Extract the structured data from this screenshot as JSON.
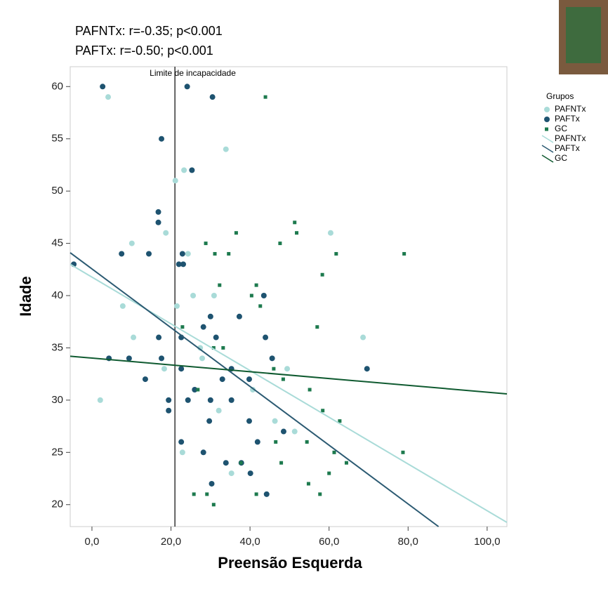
{
  "chart_data": {
    "type": "scatter",
    "annotations": [
      "PAFNTx: r=-0.35; p<0.001",
      "PAFTx: r=-0.50; p<0.001"
    ],
    "x_label": "Preensão Esquerda",
    "y_label": "Idade",
    "xlim": [
      -5.5,
      105
    ],
    "ylim": [
      17.9,
      61.9
    ],
    "xticks": [
      {
        "value": 0,
        "label": "0,0"
      },
      {
        "value": 20,
        "label": "20,0"
      },
      {
        "value": 40,
        "label": "40,0"
      },
      {
        "value": 60,
        "label": "60,0"
      },
      {
        "value": 80,
        "label": "80,0"
      },
      {
        "value": 100,
        "label": "100,0"
      }
    ],
    "yticks": [
      20,
      25,
      30,
      35,
      40,
      45,
      50,
      55,
      60
    ],
    "ref_line": {
      "x": 21,
      "label": "Limite de incapacidade"
    },
    "legend_title": "Grupos",
    "series": [
      {
        "name": "PAFNTx",
        "color": "#a9dbd8",
        "marker": "circle",
        "x": [
          4.1,
          33.9,
          23.3,
          21.1,
          18.7,
          10.1,
          24.3,
          60.4,
          7.8,
          21.5,
          25.6,
          30.9,
          10.5,
          68.6,
          27.4,
          18.3,
          49.4,
          2.1,
          32.1,
          46.3,
          51.3,
          22.9,
          35.3,
          27.9,
          40.7
        ],
        "values": [
          59,
          54,
          52,
          51,
          46,
          45,
          44,
          46,
          39,
          39,
          40,
          40,
          36,
          36,
          35,
          33,
          33,
          30,
          29,
          28,
          27,
          25,
          23,
          34,
          31
        ]
      },
      {
        "name": "PAFTx",
        "color": "#1e5370",
        "marker": "circle",
        "x": [
          2.7,
          24.1,
          30.5,
          17.6,
          25.3,
          16.8,
          16.8,
          7.5,
          14.4,
          22.9,
          -4.6,
          22.0,
          23.1,
          43.5,
          37.3,
          30.0,
          28.2,
          22.6,
          16.9,
          31.4,
          43.9,
          4.3,
          9.4,
          17.6,
          45.6,
          22.6,
          35.3,
          69.6,
          13.5,
          33.0,
          39.8,
          26.0,
          19.4,
          24.3,
          30.0,
          35.3,
          19.4,
          29.7,
          39.8,
          48.5,
          22.6,
          41.9,
          28.2,
          33.9,
          37.8,
          30.3,
          44.2,
          40.1
        ],
        "values": [
          60,
          60,
          59,
          55,
          52,
          48,
          47,
          44,
          44,
          44,
          43,
          43,
          43,
          40,
          38,
          38,
          37,
          36,
          36,
          36,
          36,
          34,
          34,
          34,
          34,
          33,
          33,
          33,
          32,
          32,
          32,
          31,
          30,
          30,
          30,
          30,
          29,
          28,
          28,
          27,
          26,
          26,
          25,
          24,
          24,
          22,
          21,
          23
        ]
      },
      {
        "name": "GC",
        "color": "#1d7a4e",
        "marker": "square",
        "x": [
          43.9,
          51.3,
          51.8,
          36.5,
          47.6,
          28.8,
          61.8,
          79.0,
          31.1,
          34.6,
          58.3,
          32.3,
          41.6,
          40.4,
          42.6,
          22.9,
          57.0,
          30.8,
          33.2,
          46.0,
          48.4,
          55.1,
          58.4,
          62.7,
          26.8,
          54.4,
          61.3,
          78.7,
          64.4,
          47.9,
          60.0,
          54.8,
          25.8,
          29.1,
          41.6,
          57.7,
          30.8,
          37.7,
          46.5
        ],
        "values": [
          59,
          47,
          46,
          46,
          45,
          45,
          44,
          44,
          44,
          44,
          42,
          41,
          41,
          40,
          39,
          37,
          37,
          35,
          35,
          33,
          32,
          31,
          29,
          28,
          31,
          26,
          25,
          25,
          24,
          24,
          23,
          22,
          21,
          21,
          21,
          21,
          20,
          24,
          26
        ]
      }
    ],
    "fit_lines": [
      {
        "name": "PAFNTx",
        "color": "#a9dbd8",
        "x": [
          -5.5,
          105
        ],
        "values": [
          43.0,
          18.3
        ]
      },
      {
        "name": "PAFTx",
        "color": "#2b5a72",
        "x": [
          -5.5,
          87.7
        ],
        "values": [
          44.1,
          17.9
        ]
      },
      {
        "name": "GC",
        "color": "#0f5a30",
        "x": [
          -5.5,
          105
        ],
        "values": [
          34.2,
          30.6
        ]
      }
    ]
  }
}
